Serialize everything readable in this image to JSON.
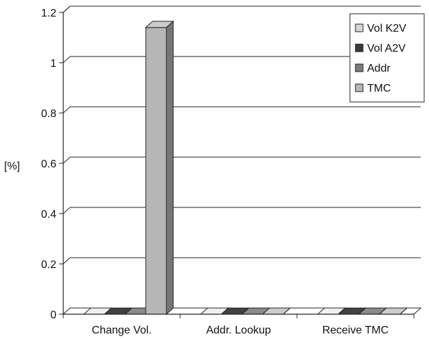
{
  "chart_data": {
    "type": "bar",
    "style": "3d-clustered-column",
    "ylabel": "[%]",
    "xlabel": "",
    "title": "",
    "ylim": [
      0,
      1.2
    ],
    "yticks": [
      "0",
      "0.2",
      "0.4",
      "0.6",
      "0.8",
      "1",
      "1.2"
    ],
    "grid": true,
    "legend_position": "top-right",
    "categories": [
      "Change Vol.",
      "Addr. Lookup",
      "Receive TMC"
    ],
    "series": [
      {
        "name": "Vol K2V",
        "color": "#d6d6d6",
        "values": [
          0,
          0,
          0
        ]
      },
      {
        "name": "Vol A2V",
        "color": "#3a3a3a",
        "values": [
          0,
          0,
          0
        ]
      },
      {
        "name": "Addr",
        "color": "#7c7c7c",
        "values": [
          0,
          0,
          0
        ]
      },
      {
        "name": "TMC",
        "color": "#b6b6b6",
        "values": [
          1.14,
          0,
          0
        ]
      }
    ]
  }
}
